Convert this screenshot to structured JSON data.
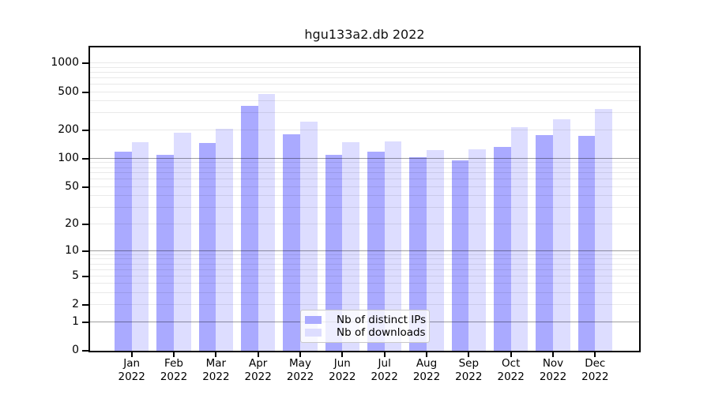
{
  "chart_data": {
    "type": "bar",
    "title": "hgu133a2.db 2022",
    "categories": [
      "Jan",
      "Feb",
      "Mar",
      "Apr",
      "May",
      "Jun",
      "Jul",
      "Aug",
      "Sep",
      "Oct",
      "Nov",
      "Dec"
    ],
    "year_label": "2022",
    "series": [
      {
        "name": "Nb of distinct IPs",
        "color": "#aaaaff",
        "values": [
          118,
          110,
          147,
          358,
          180,
          110,
          118,
          104,
          97,
          132,
          177,
          175
        ]
      },
      {
        "name": "Nb of downloads",
        "color": "#ddddff",
        "values": [
          150,
          188,
          205,
          477,
          244,
          148,
          152,
          124,
          126,
          216,
          260,
          330
        ]
      }
    ],
    "yscale": "log1p",
    "yticks": [
      0,
      1,
      2,
      5,
      10,
      20,
      50,
      100,
      200,
      500,
      1000
    ],
    "minor_gridlines": [
      2,
      3,
      4,
      5,
      6,
      7,
      8,
      9,
      20,
      30,
      40,
      50,
      60,
      70,
      80,
      90,
      200,
      300,
      400,
      500,
      600,
      700,
      800,
      900,
      1000
    ],
    "major_gridlines": [
      1,
      10,
      100
    ],
    "ylim": [
      0,
      1000
    ],
    "grid": true,
    "legend_position": "bottom-center",
    "colors": {
      "background": "#ffffff",
      "axis": "#000000",
      "grid_minor": "#e9e9e9",
      "grid_major": "#a0a0a0"
    }
  }
}
